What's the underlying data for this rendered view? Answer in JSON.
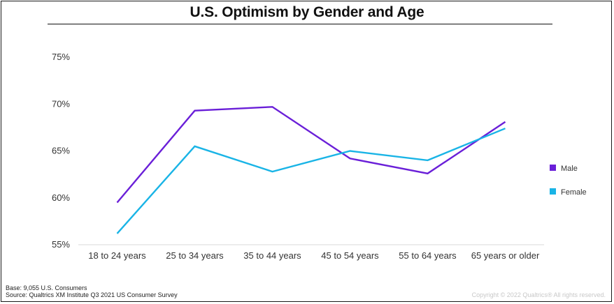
{
  "chart_data": {
    "type": "line",
    "title": "U.S. Optimism by Gender and Age",
    "categories": [
      "18 to 24 years",
      "25 to 34 years",
      "35 to 44 years",
      "45 to 54 years",
      "55 to 64 years",
      "65 years or older"
    ],
    "y_ticks": [
      55,
      60,
      65,
      70,
      75
    ],
    "y_tick_labels": [
      "55%",
      "60%",
      "65%",
      "70%",
      "75%"
    ],
    "ylim": [
      55,
      75
    ],
    "xlabel": "",
    "ylabel": "",
    "legend_position": "right",
    "series": [
      {
        "name": "Male",
        "color": "#6a1fd8",
        "values": [
          59.5,
          69.3,
          69.7,
          64.2,
          62.6,
          68.1
        ]
      },
      {
        "name": "Female",
        "color": "#19b4e6",
        "values": [
          56.2,
          65.5,
          62.8,
          65.0,
          64.0,
          67.4
        ]
      }
    ]
  },
  "footer": {
    "base": "Base: 9,055 U.S. Consumers",
    "source": "Source: Qualtrics XM Institute Q3 2021 US Consumer Survey",
    "copyright": "Copyright © 2022 Qualtrics® All rights reserved."
  }
}
